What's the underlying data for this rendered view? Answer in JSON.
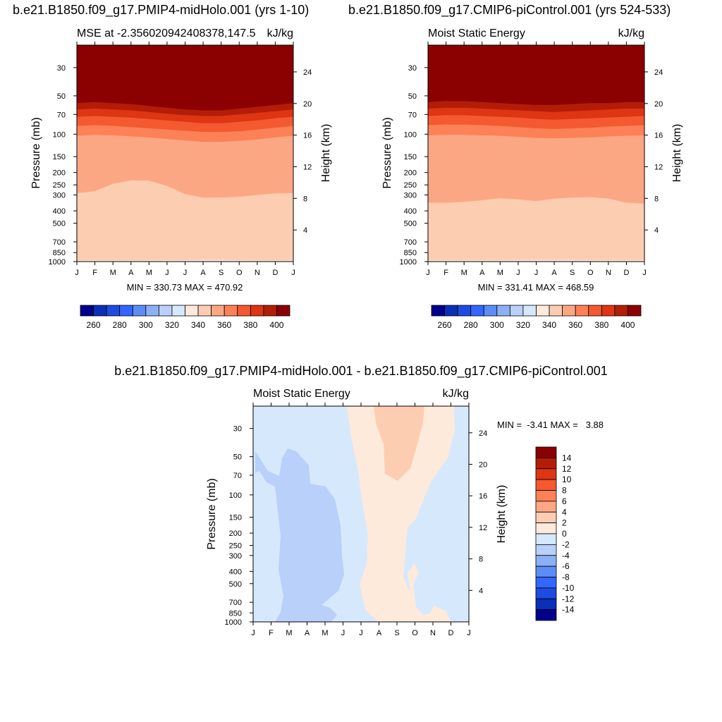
{
  "figure": {
    "title_left": "b.e21.B1850.f09_g17.PMIP4-midHolo.001 (yrs 1-10)",
    "title_right": "b.e21.B1850.f09_g17.CMIP6-piControl.001 (yrs 524-533)",
    "title_diff": "b.e21.B1850.f09_g17.PMIP4-midHolo.001 - b.e21.B1850.f09_g17.CMIP6-piControl.001"
  },
  "chart_data": [
    {
      "type": "heatmap",
      "id": "midholo",
      "title": "MSE at -2.356020942408378,147.5",
      "units": "kJ/kg",
      "xlabel": "",
      "ylabel": "Pressure (mb)",
      "ylabel_right": "Height (km)",
      "x_ticks": [
        "J",
        "F",
        "M",
        "A",
        "M",
        "J",
        "J",
        "A",
        "S",
        "O",
        "N",
        "D",
        "J"
      ],
      "y_ticks": [
        30,
        50,
        70,
        100,
        150,
        200,
        250,
        300,
        400,
        500,
        700,
        850,
        1000
      ],
      "height_ticks": [
        4,
        8,
        12,
        16,
        20,
        24
      ],
      "ylim": [
        1000,
        20
      ],
      "stats": "MIN = 330.73 MAX = 470.92",
      "min": 330.73,
      "max": 470.92,
      "colorbar": {
        "orientation": "horizontal",
        "levels": [
          250,
          260,
          270,
          280,
          290,
          300,
          310,
          320,
          330,
          340,
          350,
          360,
          370,
          380,
          390,
          400,
          410
        ],
        "labels": [
          260,
          280,
          300,
          320,
          340,
          360,
          380,
          400
        ]
      },
      "contour_boundaries_mb": {
        "x_months": [
          0,
          1,
          2,
          3,
          4,
          5,
          6,
          7,
          8,
          9,
          10,
          11,
          12
        ],
        "340": [
          980,
          980,
          980,
          980,
          980,
          975,
          975,
          970,
          970,
          975,
          980,
          980,
          980
        ],
        "350": [
          290,
          280,
          245,
          230,
          232,
          255,
          295,
          315,
          315,
          310,
          300,
          292,
          290
        ],
        "360": [
          103,
          101,
          102,
          104,
          106,
          109,
          112,
          115,
          115,
          113,
          110,
          106,
          103
        ],
        "370": [
          86,
          85,
          86,
          88,
          90,
          92,
          94,
          96,
          96,
          95,
          92,
          89,
          86
        ],
        "380": [
          73,
          72,
          73,
          74,
          76,
          78,
          80,
          82,
          82,
          80,
          78,
          75,
          73
        ],
        "390": [
          64,
          63,
          64,
          65,
          67,
          69,
          71,
          72,
          72,
          70,
          68,
          66,
          64
        ],
        "400": [
          57,
          56,
          57,
          58,
          60,
          62,
          64,
          65,
          65,
          63,
          61,
          59,
          57
        ]
      }
    },
    {
      "type": "heatmap",
      "id": "picontrol",
      "title": "Moist Static Energy",
      "units": "kJ/kg",
      "xlabel": "",
      "ylabel": "Pressure (mb)",
      "ylabel_right": "Height (km)",
      "x_ticks": [
        "J",
        "F",
        "M",
        "A",
        "M",
        "J",
        "J",
        "A",
        "S",
        "O",
        "N",
        "D",
        "J"
      ],
      "y_ticks": [
        30,
        50,
        70,
        100,
        150,
        200,
        250,
        300,
        400,
        500,
        700,
        850,
        1000
      ],
      "height_ticks": [
        4,
        8,
        12,
        16,
        20,
        24
      ],
      "ylim": [
        1000,
        20
      ],
      "stats": "MIN = 331.41 MAX = 468.59",
      "min": 331.41,
      "max": 468.59,
      "colorbar": {
        "orientation": "horizontal",
        "levels": [
          250,
          260,
          270,
          280,
          290,
          300,
          310,
          320,
          330,
          340,
          350,
          360,
          370,
          380,
          390,
          400,
          410
        ],
        "labels": [
          260,
          280,
          300,
          320,
          340,
          360,
          380,
          400
        ]
      },
      "contour_boundaries_mb": {
        "x_months": [
          0,
          1,
          2,
          3,
          4,
          5,
          6,
          7,
          8,
          9,
          10,
          11,
          12
        ],
        "340": [
          975,
          975,
          975,
          975,
          975,
          970,
          970,
          970,
          970,
          975,
          975,
          975,
          975
        ],
        "350": [
          345,
          345,
          340,
          330,
          318,
          325,
          335,
          320,
          315,
          313,
          320,
          345,
          350
        ],
        "360": [
          102,
          101,
          101,
          102,
          103,
          105,
          107,
          108,
          107,
          106,
          104,
          103,
          102
        ],
        "370": [
          85,
          84,
          84,
          85,
          86,
          88,
          90,
          91,
          90,
          89,
          87,
          86,
          85
        ],
        "380": [
          72,
          71,
          71,
          72,
          73,
          74,
          76,
          77,
          76,
          75,
          74,
          73,
          72
        ],
        "390": [
          63,
          62,
          62,
          63,
          64,
          65,
          66,
          67,
          66,
          65,
          64,
          63,
          63
        ],
        "400": [
          56,
          55,
          55,
          56,
          57,
          58,
          59,
          59,
          58,
          57,
          57,
          56,
          56
        ]
      }
    },
    {
      "type": "heatmap",
      "id": "difference",
      "title": "Moist Static Energy",
      "units": "kJ/kg",
      "xlabel": "",
      "ylabel": "Pressure (mb)",
      "ylabel_right": "Height (km)",
      "x_ticks": [
        "J",
        "F",
        "M",
        "A",
        "M",
        "J",
        "J",
        "A",
        "S",
        "O",
        "N",
        "D",
        "J"
      ],
      "y_ticks": [
        30,
        50,
        70,
        100,
        150,
        200,
        250,
        300,
        400,
        500,
        700,
        850,
        1000
      ],
      "height_ticks": [
        4,
        8,
        12,
        16,
        20,
        24
      ],
      "ylim": [
        1000,
        20
      ],
      "stats": "MIN =  -3.41 MAX =   3.88",
      "min": -3.41,
      "max": 3.88,
      "colorbar": {
        "orientation": "vertical",
        "levels": [
          -16,
          -14,
          -12,
          -10,
          -8,
          -6,
          -4,
          -2,
          0,
          2,
          4,
          6,
          8,
          10,
          12,
          14,
          16
        ],
        "labels": [
          14,
          12,
          10,
          8,
          6,
          4,
          2,
          0,
          -2,
          -4,
          -6,
          -8,
          -10,
          -12,
          -14
        ]
      },
      "regions": {
        "neg_0_to_-2": "background (most of domain)",
        "neg_-2_to_-4": "Feb-Jun band, 60-1000 mb",
        "pos_0_to_2": "Jun-Dec band, full column",
        "pos_2_to_4": "Aug-Oct, 20-80 mb"
      }
    }
  ],
  "colors": {
    "divergent": [
      "#00008b",
      "#0a2fb8",
      "#1e4be0",
      "#3366ff",
      "#5c8cf5",
      "#8cb0f5",
      "#b8d0fa",
      "#d6e8fc",
      "#feeadb",
      "#fdcdb2",
      "#fca784",
      "#fd8156",
      "#f4592f",
      "#de3512",
      "#b31d08",
      "#8b0000"
    ]
  }
}
